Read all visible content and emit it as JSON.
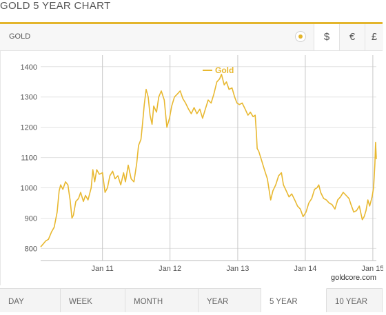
{
  "page": {
    "title": "GOLD 5 YEAR CHART",
    "metal_label": "GOLD",
    "currencies": [
      "$",
      "€",
      "£"
    ],
    "active_currency": "$",
    "source": "goldcore.com",
    "accent_color": "#e3b52c",
    "tabs": [
      "DAY",
      "WEEK",
      "MONTH",
      "YEAR",
      "5 YEAR",
      "10 YEAR"
    ],
    "active_tab": "5 YEAR"
  },
  "chart_data": {
    "type": "line",
    "title": "",
    "xlabel": "",
    "ylabel": "",
    "legend": {
      "position": "top-center",
      "entries": [
        "Gold"
      ]
    },
    "grid": true,
    "ylim": [
      760,
      1420
    ],
    "xlim": [
      "2010-02-01",
      "2015-01-20"
    ],
    "y_ticks": [
      800,
      900,
      1000,
      1100,
      1200,
      1300,
      1400
    ],
    "x_ticks": [
      {
        "label": "Jan 11",
        "date": "2011-01-01"
      },
      {
        "label": "Jan 12",
        "date": "2012-01-01"
      },
      {
        "label": "Jan 13",
        "date": "2013-01-01"
      },
      {
        "label": "Jan 14",
        "date": "2014-01-01"
      },
      {
        "label": "Jan 15",
        "date": "2015-01-01"
      }
    ],
    "series": [
      {
        "name": "Gold",
        "color": "#e8b830",
        "points": [
          [
            "2010-02-01",
            805
          ],
          [
            "2010-02-15",
            815
          ],
          [
            "2010-03-01",
            825
          ],
          [
            "2010-03-15",
            830
          ],
          [
            "2010-04-01",
            855
          ],
          [
            "2010-04-15",
            870
          ],
          [
            "2010-05-01",
            920
          ],
          [
            "2010-05-12",
            990
          ],
          [
            "2010-05-20",
            1010
          ],
          [
            "2010-06-01",
            995
          ],
          [
            "2010-06-15",
            1020
          ],
          [
            "2010-06-28",
            1010
          ],
          [
            "2010-07-10",
            960
          ],
          [
            "2010-07-20",
            900
          ],
          [
            "2010-07-28",
            910
          ],
          [
            "2010-08-10",
            955
          ],
          [
            "2010-08-25",
            965
          ],
          [
            "2010-09-05",
            985
          ],
          [
            "2010-09-20",
            955
          ],
          [
            "2010-10-01",
            975
          ],
          [
            "2010-10-15",
            960
          ],
          [
            "2010-11-01",
            1000
          ],
          [
            "2010-11-10",
            1060
          ],
          [
            "2010-11-20",
            1020
          ],
          [
            "2010-12-01",
            1060
          ],
          [
            "2010-12-15",
            1045
          ],
          [
            "2011-01-01",
            1050
          ],
          [
            "2011-01-15",
            985
          ],
          [
            "2011-01-28",
            1000
          ],
          [
            "2011-02-10",
            1040
          ],
          [
            "2011-02-25",
            1055
          ],
          [
            "2011-03-10",
            1030
          ],
          [
            "2011-03-25",
            1040
          ],
          [
            "2011-04-10",
            1010
          ],
          [
            "2011-04-25",
            1050
          ],
          [
            "2011-05-05",
            1020
          ],
          [
            "2011-05-20",
            1075
          ],
          [
            "2011-06-05",
            1030
          ],
          [
            "2011-06-20",
            1020
          ],
          [
            "2011-07-05",
            1080
          ],
          [
            "2011-07-15",
            1140
          ],
          [
            "2011-07-28",
            1160
          ],
          [
            "2011-08-05",
            1210
          ],
          [
            "2011-08-15",
            1275
          ],
          [
            "2011-08-25",
            1325
          ],
          [
            "2011-09-05",
            1300
          ],
          [
            "2011-09-15",
            1240
          ],
          [
            "2011-09-26",
            1210
          ],
          [
            "2011-10-05",
            1270
          ],
          [
            "2011-10-20",
            1250
          ],
          [
            "2011-11-01",
            1300
          ],
          [
            "2011-11-15",
            1320
          ],
          [
            "2011-12-01",
            1290
          ],
          [
            "2011-12-15",
            1200
          ],
          [
            "2011-12-29",
            1230
          ],
          [
            "2012-01-10",
            1270
          ],
          [
            "2012-01-25",
            1300
          ],
          [
            "2012-02-10",
            1310
          ],
          [
            "2012-02-25",
            1320
          ],
          [
            "2012-03-10",
            1295
          ],
          [
            "2012-03-25",
            1280
          ],
          [
            "2012-04-10",
            1260
          ],
          [
            "2012-04-25",
            1245
          ],
          [
            "2012-05-10",
            1265
          ],
          [
            "2012-05-25",
            1245
          ],
          [
            "2012-06-10",
            1260
          ],
          [
            "2012-06-25",
            1230
          ],
          [
            "2012-07-10",
            1260
          ],
          [
            "2012-07-25",
            1290
          ],
          [
            "2012-08-10",
            1280
          ],
          [
            "2012-08-25",
            1310
          ],
          [
            "2012-09-10",
            1350
          ],
          [
            "2012-09-25",
            1360
          ],
          [
            "2012-10-05",
            1375
          ],
          [
            "2012-10-20",
            1340
          ],
          [
            "2012-11-01",
            1350
          ],
          [
            "2012-11-15",
            1325
          ],
          [
            "2012-12-01",
            1330
          ],
          [
            "2012-12-15",
            1300
          ],
          [
            "2012-12-28",
            1280
          ],
          [
            "2013-01-10",
            1275
          ],
          [
            "2013-01-25",
            1280
          ],
          [
            "2013-02-10",
            1260
          ],
          [
            "2013-02-25",
            1240
          ],
          [
            "2013-03-10",
            1250
          ],
          [
            "2013-03-25",
            1235
          ],
          [
            "2013-04-05",
            1240
          ],
          [
            "2013-04-12",
            1180
          ],
          [
            "2013-04-16",
            1130
          ],
          [
            "2013-04-25",
            1120
          ],
          [
            "2013-05-10",
            1090
          ],
          [
            "2013-05-25",
            1060
          ],
          [
            "2013-06-10",
            1030
          ],
          [
            "2013-06-20",
            990
          ],
          [
            "2013-06-28",
            960
          ],
          [
            "2013-07-10",
            990
          ],
          [
            "2013-07-25",
            1010
          ],
          [
            "2013-08-10",
            1040
          ],
          [
            "2013-08-25",
            1050
          ],
          [
            "2013-09-05",
            1010
          ],
          [
            "2013-09-20",
            990
          ],
          [
            "2013-10-05",
            970
          ],
          [
            "2013-10-20",
            980
          ],
          [
            "2013-11-05",
            960
          ],
          [
            "2013-11-20",
            940
          ],
          [
            "2013-12-05",
            930
          ],
          [
            "2013-12-20",
            905
          ],
          [
            "2014-01-05",
            920
          ],
          [
            "2014-01-20",
            950
          ],
          [
            "2014-02-05",
            965
          ],
          [
            "2014-02-20",
            995
          ],
          [
            "2014-03-05",
            1000
          ],
          [
            "2014-03-15",
            1010
          ],
          [
            "2014-03-25",
            985
          ],
          [
            "2014-04-10",
            965
          ],
          [
            "2014-04-25",
            960
          ],
          [
            "2014-05-10",
            950
          ],
          [
            "2014-05-25",
            945
          ],
          [
            "2014-06-10",
            930
          ],
          [
            "2014-06-25",
            960
          ],
          [
            "2014-07-10",
            970
          ],
          [
            "2014-07-25",
            985
          ],
          [
            "2014-08-10",
            975
          ],
          [
            "2014-08-25",
            965
          ],
          [
            "2014-09-05",
            945
          ],
          [
            "2014-09-20",
            920
          ],
          [
            "2014-10-05",
            925
          ],
          [
            "2014-10-20",
            940
          ],
          [
            "2014-11-05",
            895
          ],
          [
            "2014-11-15",
            905
          ],
          [
            "2014-11-25",
            925
          ],
          [
            "2014-12-05",
            960
          ],
          [
            "2014-12-15",
            940
          ],
          [
            "2014-12-28",
            970
          ],
          [
            "2015-01-05",
            1000
          ],
          [
            "2015-01-12",
            1080
          ],
          [
            "2015-01-16",
            1150
          ],
          [
            "2015-01-20",
            1095
          ]
        ]
      }
    ]
  }
}
